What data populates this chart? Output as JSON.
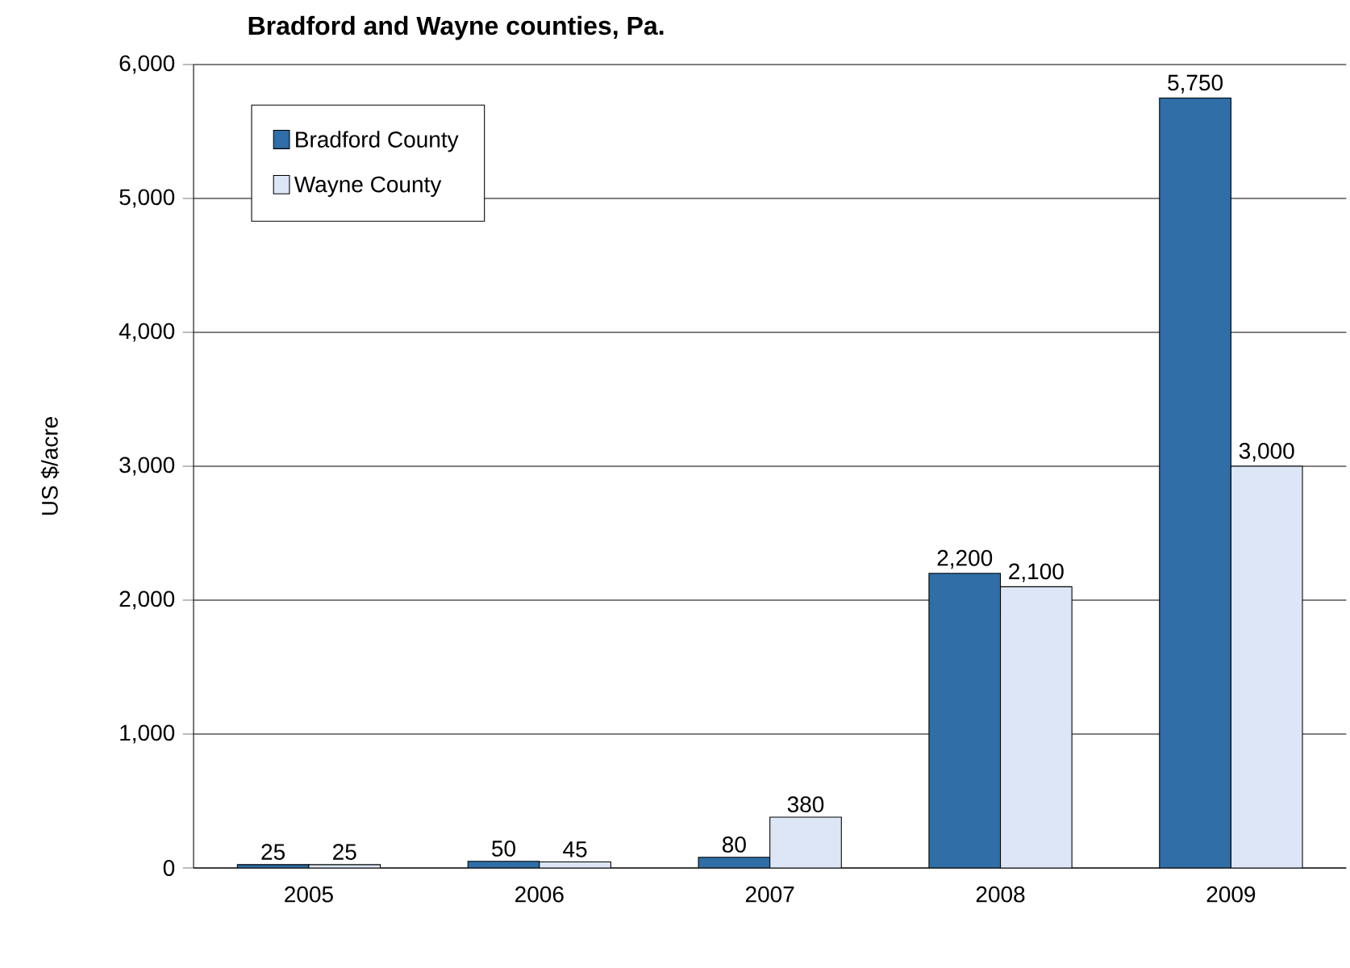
{
  "chart_data": {
    "type": "bar",
    "title": "Bradford and Wayne counties, Pa.",
    "ylabel": "US $/acre",
    "categories": [
      "2005",
      "2006",
      "2007",
      "2008",
      "2009"
    ],
    "series": [
      {
        "name": "Bradford County",
        "color": "#2f6ea6",
        "values": [
          25,
          50,
          80,
          2200,
          5750
        ],
        "value_labels": [
          "25",
          "50",
          "80",
          "2,200",
          "5,750"
        ]
      },
      {
        "name": "Wayne County",
        "color": "#dce6f6",
        "values": [
          25,
          45,
          380,
          2100,
          3000
        ],
        "value_labels": [
          "25",
          "45",
          "380",
          "2,100",
          "3,000"
        ]
      }
    ],
    "ylim": [
      0,
      6000
    ],
    "yticks": [
      {
        "value": 0,
        "label": "0"
      },
      {
        "value": 1000,
        "label": "1,000"
      },
      {
        "value": 2000,
        "label": "2,000"
      },
      {
        "value": 3000,
        "label": "3,000"
      },
      {
        "value": 4000,
        "label": "4,000"
      },
      {
        "value": 5000,
        "label": "5,000"
      },
      {
        "value": 6000,
        "label": "6,000"
      }
    ],
    "grid": "y",
    "legend": "top left"
  }
}
